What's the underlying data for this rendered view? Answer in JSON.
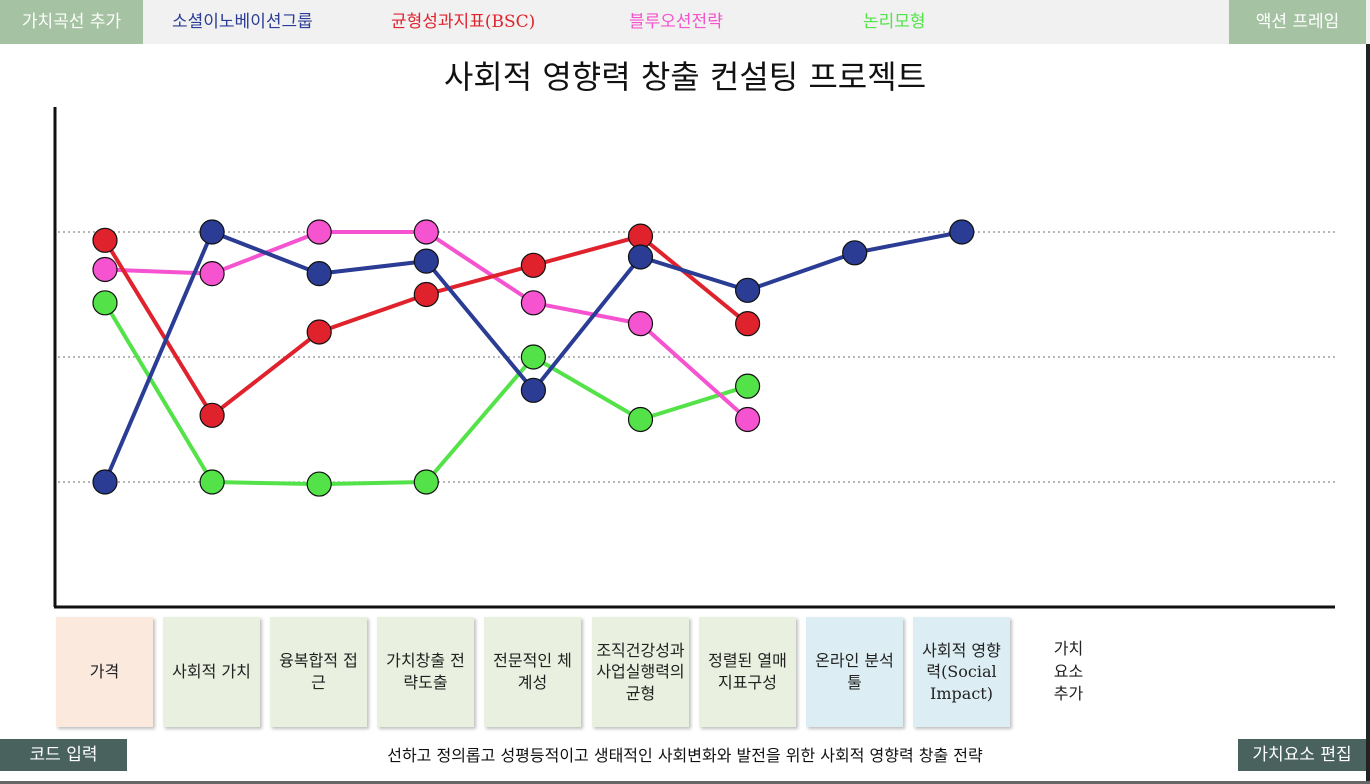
{
  "toolbar": {
    "add_curve": "가치곡선 추가",
    "action_frame": "액션 프레임",
    "code_input": "코드 입력",
    "edit_elements": "가치요소 편집"
  },
  "footer_text": "선하고 정의롭고 성평등적이고 생태적인 사회변화와 발전을 위한 사회적 영향력 창출 전략",
  "add_element_label": "가치\n요소\n추가",
  "chart_data": {
    "type": "line",
    "title": "사회적 영향력 창출 컨설팅 프로젝트",
    "categories": [
      "가격",
      "사회적 가치",
      "융복합적 접근",
      "가치창출 전략도출",
      "전문적인 체계성",
      "조직건강성과 사업실행력의 균형",
      "정렬된 열매 지표구성",
      "온라인 분석툴",
      "사회적 영향력(Social Impact)"
    ],
    "category_colors": [
      "#fbe9dd",
      "#e9f0df",
      "#e9f0df",
      "#e9f0df",
      "#e9f0df",
      "#e9f0df",
      "#e9f0df",
      "#dceef4",
      "#dceef4"
    ],
    "ylim": [
      0,
      10
    ],
    "gridlines": [
      3,
      6,
      9
    ],
    "series": [
      {
        "name": "소셜이노베이션그룹",
        "color": "#2a3c93",
        "values": [
          3,
          9,
          8,
          8.3,
          5.2,
          8.4,
          7.6,
          8.5,
          9
        ]
      },
      {
        "name": "균형성과지표(BSC)",
        "color": "#e0222d",
        "values": [
          8.8,
          4.6,
          6.6,
          7.5,
          8.2,
          8.9,
          6.8,
          null,
          null
        ]
      },
      {
        "name": "블루오션전략",
        "color": "#f553cf",
        "values": [
          8.1,
          8,
          9,
          9,
          7.3,
          6.8,
          4.5,
          null,
          null
        ]
      },
      {
        "name": "논리모형",
        "color": "#54e249",
        "values": [
          7.3,
          3,
          2.95,
          3,
          6,
          4.5,
          5.3,
          null,
          null
        ]
      }
    ]
  }
}
